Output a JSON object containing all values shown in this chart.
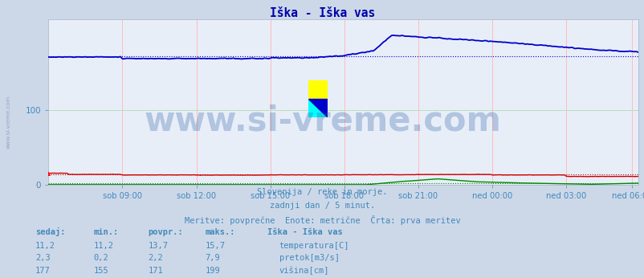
{
  "title": "Iška - Iška vas",
  "subtitle1": "Slovenija / reke in morje.",
  "subtitle2": "zadnji dan / 5 minut.",
  "subtitle3": "Meritve: povprečne  Enote: metrične  Črta: prva meritev",
  "bg_color": "#ccd8e8",
  "plot_bg_color": "#e8eef8",
  "grid_color_v": "#ffbbbb",
  "grid_color_h": "#bbddbb",
  "title_color": "#0000aa",
  "text_color": "#4488bb",
  "n_points": 288,
  "ylim": [
    0,
    220
  ],
  "yticks": [
    0,
    100
  ],
  "xtick_labels": [
    "sob 09:00",
    "sob 12:00",
    "sob 15:00",
    "sob 18:00",
    "sob 21:00",
    "ned 00:00",
    "ned 03:00",
    "ned 06:00"
  ],
  "xtick_positions": [
    36,
    72,
    108,
    144,
    180,
    216,
    252,
    284
  ],
  "temp_color": "#cc0000",
  "flow_color": "#008800",
  "height_color": "#0000cc",
  "temp_avg": 13.7,
  "flow_avg": 2.2,
  "height_avg": 171,
  "temp_current": "11,2",
  "temp_min": "11,2",
  "temp_povpr": "13,7",
  "temp_max": "15,7",
  "flow_current": "2,3",
  "flow_min": "0,2",
  "flow_povpr": "2,2",
  "flow_max": "7,9",
  "height_current": "177",
  "height_min": "155",
  "height_povpr": "171",
  "height_max": "199",
  "watermark": "www.si-vreme.com",
  "watermark_color": "#3366aa",
  "watermark_alpha": 0.3,
  "watermark_fontsize": 30,
  "left_text": "www.si-vreme.com"
}
